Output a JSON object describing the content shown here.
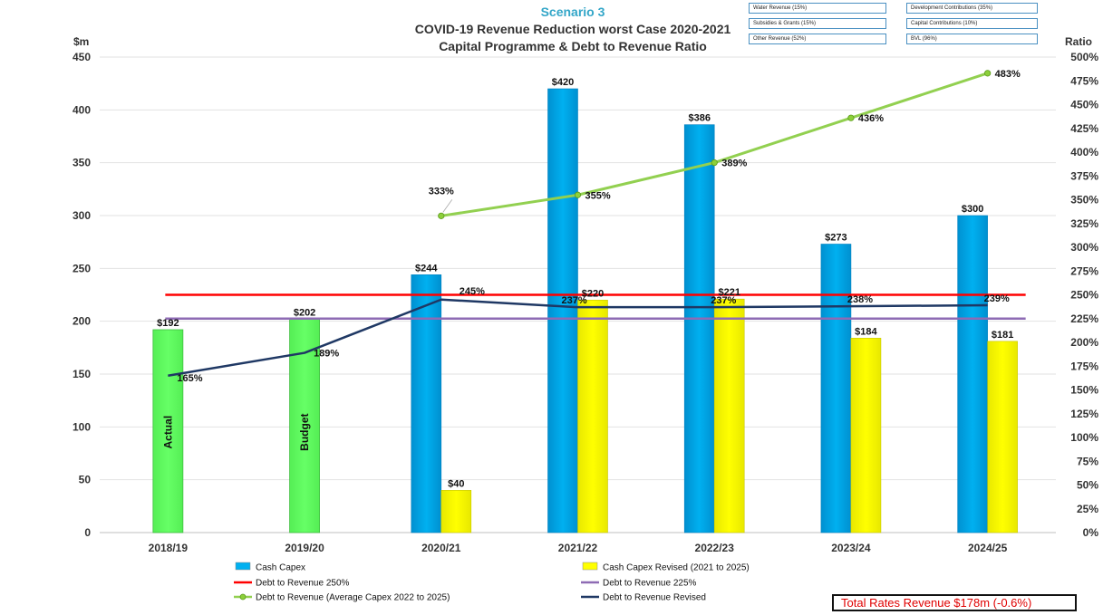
{
  "titles": {
    "scenario": "Scenario 3",
    "line1": "COVID-19 Revenue Reduction worst Case 2020-2021",
    "line2": "Capital Programme & Debt to Revenue Ratio",
    "y_left_unit": "$m",
    "y_right_unit": "Ratio"
  },
  "info_boxes": [
    "Water Revenue  (15%)",
    "Development  Contributions  (35%)",
    "Subsidies & Grants  (15%)",
    "Capital Contributions  (10%)",
    "Other Revenue  (52%)",
    "BVL (96%)"
  ],
  "total_box": "Total Rates Revenue $178m (-0.6%)",
  "colors": {
    "actual_green": "#66ff66",
    "cash_capex_blue": "#00b0f0",
    "revised_yellow": "#ffff00",
    "line_250": "#ff0000",
    "line_225": "#8e6bb4",
    "avg_capex_line": "#92d050",
    "revised_line": "#1f3864"
  },
  "chart_data": {
    "type": "bar",
    "categories": [
      "2018/19",
      "2019/20",
      "2020/21",
      "2021/22",
      "2022/23",
      "2023/24",
      "2024/25"
    ],
    "y_left": {
      "min": 0,
      "max": 450,
      "step": 50
    },
    "y_right": {
      "min": 0,
      "max": 500,
      "step": 25,
      "suffix": "%"
    },
    "actual_bars": [
      {
        "category": "2018/19",
        "value": 192,
        "label": "$192",
        "bar_text": "Actual"
      },
      {
        "category": "2019/20",
        "value": 202,
        "label": "$202",
        "bar_text": "Budget"
      }
    ],
    "series": [
      {
        "name": "Cash Capex",
        "kind": "bar",
        "values": [
          null,
          null,
          244,
          420,
          386,
          273,
          300
        ],
        "labels": [
          "",
          "",
          "$244",
          "$420",
          "$386",
          "$273",
          "$300"
        ]
      },
      {
        "name": "Cash Capex Revised (2021 to 2025)",
        "kind": "bar",
        "values": [
          null,
          null,
          40,
          220,
          221,
          184,
          181
        ],
        "labels": [
          "",
          "",
          "$40",
          "$220",
          "$221",
          "$184",
          "$181"
        ]
      },
      {
        "name": "Debt to Revenue 250%",
        "kind": "hline",
        "value": 250
      },
      {
        "name": "Debt to Revenue 225%",
        "kind": "hline",
        "value": 225
      },
      {
        "name": "Debt to Revenue (Average Capex 2022 to 2025)",
        "kind": "line",
        "values": [
          null,
          null,
          333,
          355,
          389,
          436,
          483
        ],
        "labels": [
          "",
          "",
          "333%",
          "355%",
          "389%",
          "436%",
          "483%"
        ]
      },
      {
        "name": "Debt to Revenue Revised",
        "kind": "line",
        "values": [
          165,
          189,
          245,
          237,
          237,
          238,
          239
        ],
        "labels": [
          "165%",
          "189%",
          "245%",
          "237%",
          "237%",
          "238%",
          "239%"
        ]
      }
    ]
  }
}
